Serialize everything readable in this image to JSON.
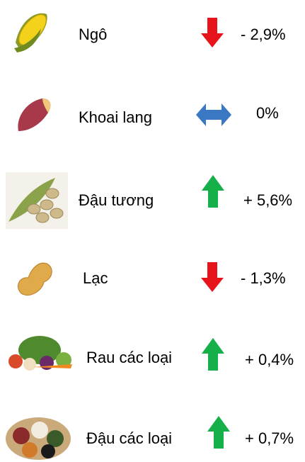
{
  "items": [
    {
      "name": "Ngô",
      "change": "- 2,9%"
    },
    {
      "name": "Khoai lang",
      "change": "0%"
    },
    {
      "name": "Đậu tương",
      "change": "+ 5,6%"
    },
    {
      "name": "Lạc",
      "change": "- 1,3%"
    },
    {
      "name": "Rau các loại",
      "change": "+ 0,4%"
    },
    {
      "name": "Đậu các loại",
      "change": "+ 0,7%"
    }
  ]
}
